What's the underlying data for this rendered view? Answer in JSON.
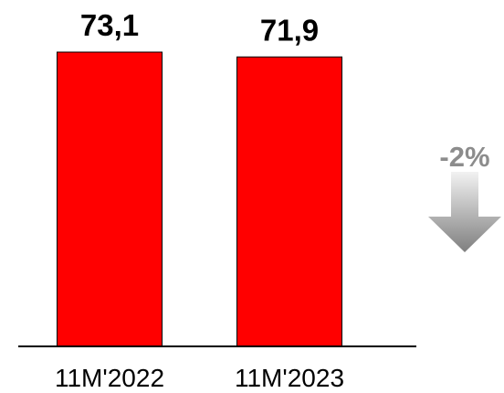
{
  "chart_data": {
    "type": "bar",
    "categories": [
      "11M'2022",
      "11M'2023"
    ],
    "values": [
      73.1,
      71.9
    ],
    "value_labels": [
      "73,1",
      "71,9"
    ],
    "bar_color": "#ff0000",
    "bar_outline_color": "#000000",
    "ylim": [
      0,
      73.1
    ],
    "grid": false,
    "legend": "none",
    "title": "",
    "xlabel": "",
    "ylabel": ""
  },
  "annotation": {
    "text": "-2%",
    "color": "#8c8c8c",
    "arrow_icon": "down-arrow-icon",
    "arrow_gradient": [
      "#f2f2f2",
      "#7f7f7f"
    ]
  }
}
